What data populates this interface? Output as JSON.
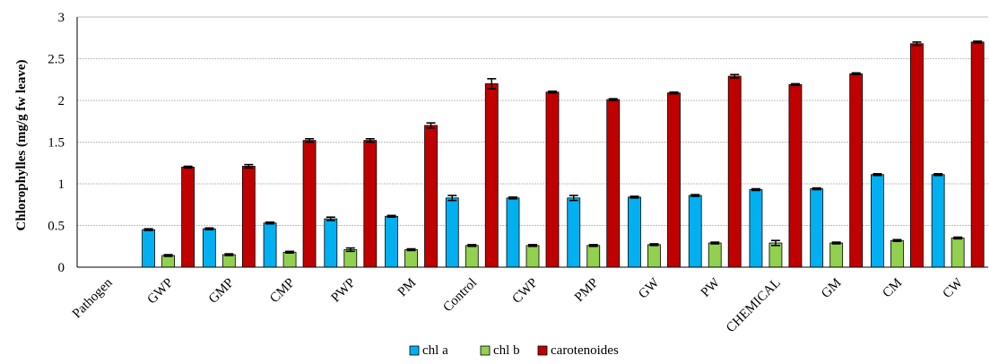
{
  "chart_data": {
    "type": "bar",
    "title": "",
    "xlabel": "",
    "ylabel": "Chlorophylles  (mg/g fw leave)",
    "ylim": [
      0,
      3
    ],
    "yticks": [
      "0",
      "0.5",
      "1",
      "1.5",
      "2",
      "2.5",
      "3"
    ],
    "grid": true,
    "legend_position": "bottom",
    "categories": [
      "Pathogen",
      "GWP",
      "GMP",
      "CMP",
      "PWP",
      "PM",
      "Control",
      "CWP",
      "PMP",
      "GW",
      "PW",
      "CHEMICAL",
      "GM",
      "CM",
      "CW"
    ],
    "series": [
      {
        "name": "chl a",
        "color": "#00B0F0",
        "values": [
          0,
          0.45,
          0.46,
          0.53,
          0.58,
          0.61,
          0.83,
          0.83,
          0.83,
          0.84,
          0.86,
          0.93,
          0.94,
          1.11,
          1.11
        ],
        "errors": [
          0,
          0.01,
          0.01,
          0.01,
          0.02,
          0.01,
          0.03,
          0.01,
          0.03,
          0.01,
          0.01,
          0.01,
          0.01,
          0.01,
          0.01
        ]
      },
      {
        "name": "chl b",
        "color": "#92D050",
        "values": [
          0,
          0.14,
          0.15,
          0.18,
          0.21,
          0.21,
          0.26,
          0.26,
          0.26,
          0.27,
          0.29,
          0.29,
          0.29,
          0.32,
          0.35
        ],
        "errors": [
          0,
          0.01,
          0.01,
          0.01,
          0.02,
          0.01,
          0.01,
          0.01,
          0.01,
          0.01,
          0.01,
          0.03,
          0.01,
          0.01,
          0.01
        ]
      },
      {
        "name": "carotenoides",
        "color": "#C00000",
        "values": [
          0,
          1.2,
          1.21,
          1.52,
          1.52,
          1.7,
          2.2,
          2.1,
          2.01,
          2.09,
          2.29,
          2.19,
          2.32,
          2.68,
          2.7
        ],
        "errors": [
          0,
          0.01,
          0.02,
          0.02,
          0.02,
          0.03,
          0.06,
          0.01,
          0.01,
          0.01,
          0.02,
          0.01,
          0.01,
          0.02,
          0.01
        ]
      }
    ]
  }
}
